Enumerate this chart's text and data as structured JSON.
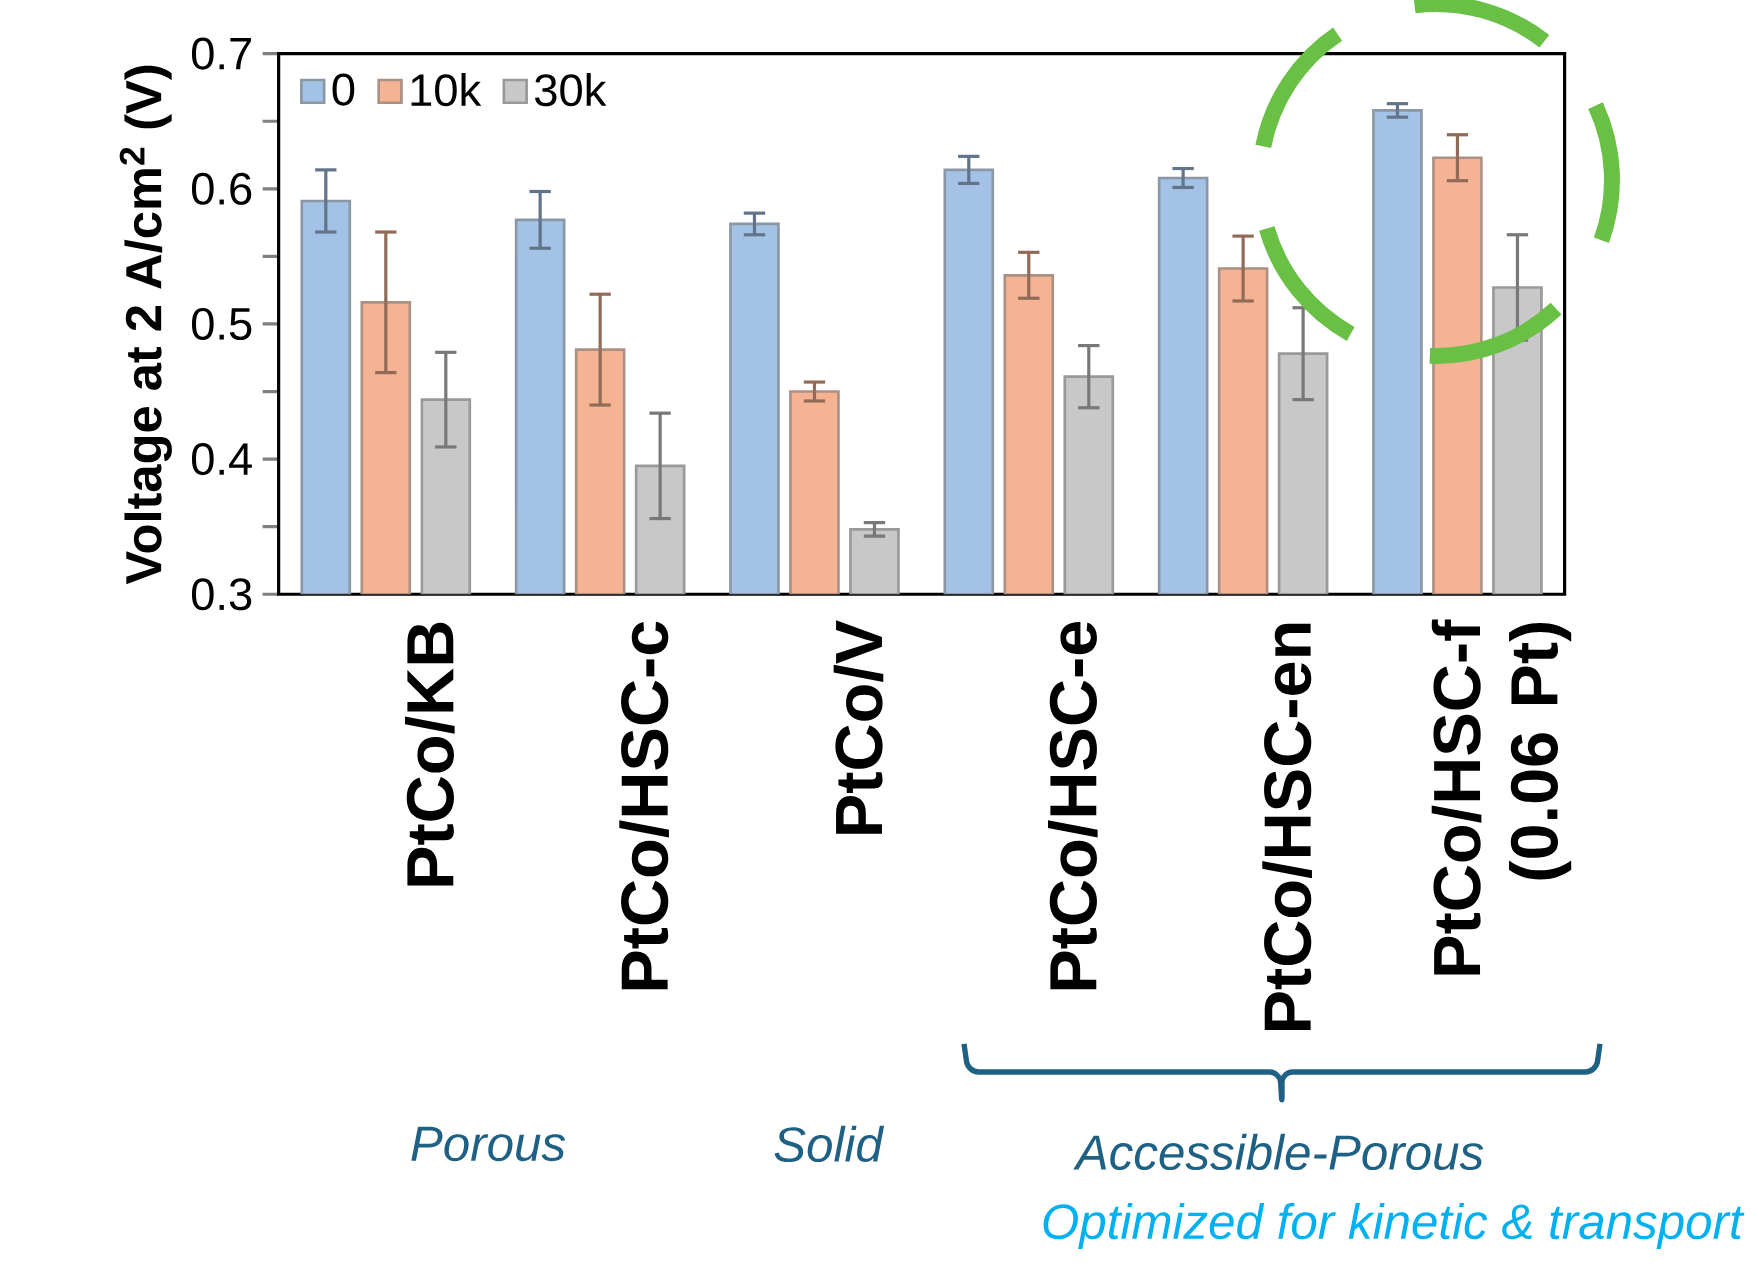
{
  "chart_data": {
    "type": "bar",
    "ylabel": "Voltage at 2 A/cm$^{2}$ (V)",
    "categories": [
      "PtCo/KB",
      "PtCo/HSC-c",
      "PtCo/V",
      "PtCo/HSC-e",
      "PtCo/HSC-en",
      "PtCo/HSC-f (0.06 Pt)"
    ],
    "series": [
      {
        "name": "0",
        "color": "#a4c2e6",
        "values": [
          0.591,
          0.577,
          0.574,
          0.614,
          0.608,
          0.658
        ],
        "errors": [
          0.023,
          0.021,
          0.008,
          0.01,
          0.007,
          0.005
        ]
      },
      {
        "name": "10k",
        "color": "#f4b393",
        "values": [
          0.516,
          0.481,
          0.45,
          0.536,
          0.541,
          0.623
        ],
        "errors": [
          0.052,
          0.041,
          0.007,
          0.017,
          0.024,
          0.017
        ]
      },
      {
        "name": "30k",
        "color": "#c8c8c8",
        "values": [
          0.444,
          0.395,
          0.348,
          0.461,
          0.478,
          0.527
        ],
        "errors": [
          0.035,
          0.039,
          0.005,
          0.023,
          0.034,
          0.039
        ]
      }
    ],
    "ylim": [
      0.3,
      0.7
    ],
    "yticks": [
      0.3,
      {
        "value": 0.35,
        "label": null
      },
      0.4,
      {
        "value": 0.45,
        "label": null
      },
      0.5,
      {
        "value": 0.55,
        "label": null
      },
      0.6,
      {
        "value": 0.65,
        "label": null
      },
      0.7
    ],
    "legend": "top left",
    "annotations": [
      "Porous",
      "Solid",
      "Accessible-Porous",
      "Optimized for kinetic & transport"
    ]
  }
}
